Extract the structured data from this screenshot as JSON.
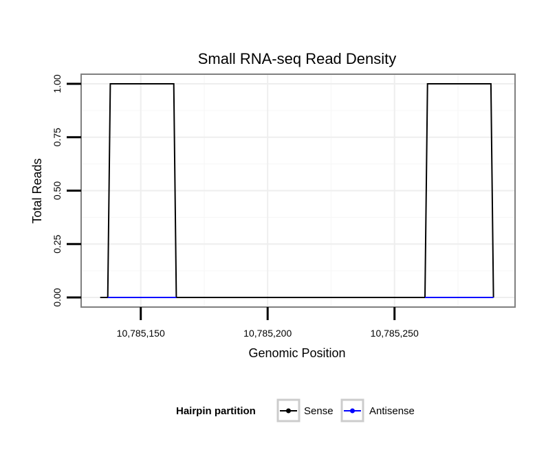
{
  "chart_data": {
    "type": "line",
    "title": "Small RNA-seq Read Density",
    "xlabel": "Genomic Position",
    "ylabel": "Total Reads",
    "xlim": [
      10785126.5,
      10785297.5
    ],
    "ylim": [
      -0.045,
      1.045
    ],
    "x_ticks": [
      10785150,
      10785200,
      10785250
    ],
    "x_tick_labels": [
      "10,785,150",
      "10,785,200",
      "10,785,250"
    ],
    "y_ticks": [
      0,
      0.25,
      0.5,
      0.75,
      1
    ],
    "y_tick_labels": [
      "0.00",
      "0.25",
      "0.50",
      "0.75",
      "1.00"
    ],
    "grid": true,
    "series": [
      {
        "name": "Sense",
        "color": "#000000",
        "x": [
          10785134,
          10785137,
          10785138,
          10785163,
          10785164,
          10785262,
          10785263,
          10785288,
          10785289
        ],
        "y": [
          0,
          0,
          1,
          1,
          0,
          0,
          1,
          1,
          0
        ]
      },
      {
        "name": "Antisense",
        "color": "#0000ff",
        "x": [
          10785137,
          10785164
        ],
        "y": [
          0,
          0
        ],
        "x2": [
          10785262,
          10785289
        ],
        "y2": [
          0,
          0
        ]
      }
    ],
    "legend": {
      "title": "Hairpin partition",
      "position": "bottom",
      "entries": [
        "Sense",
        "Antisense"
      ]
    }
  }
}
